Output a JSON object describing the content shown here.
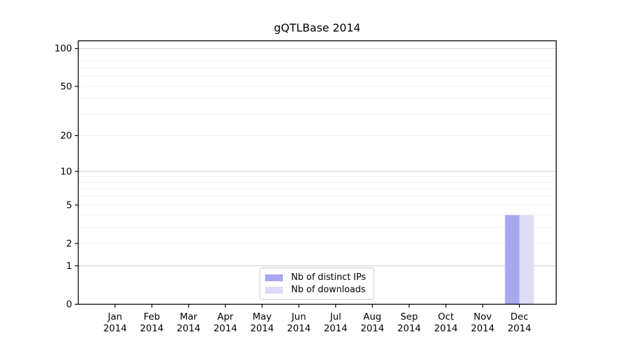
{
  "chart_data": {
    "type": "bar",
    "title": "gQTLBase 2014",
    "xlabel": "",
    "ylabel": "",
    "yscale": "log1p",
    "ylim": [
      0,
      115
    ],
    "yticks": [
      0,
      1,
      2,
      5,
      10,
      20,
      50,
      100
    ],
    "categories": [
      "Jan 2014",
      "Feb 2014",
      "Mar 2014",
      "Apr 2014",
      "May 2014",
      "Jun 2014",
      "Jul 2014",
      "Aug 2014",
      "Sep 2014",
      "Oct 2014",
      "Nov 2014",
      "Dec 2014"
    ],
    "series": [
      {
        "name": "Nb of distinct IPs",
        "color": "#a8a8f1",
        "values": [
          0,
          0,
          0,
          0,
          0,
          0,
          0,
          0,
          0,
          0,
          0,
          4
        ]
      },
      {
        "name": "Nb of downloads",
        "color": "#dcdcf8",
        "values": [
          0,
          0,
          0,
          0,
          0,
          0,
          0,
          0,
          0,
          0,
          0,
          4
        ]
      }
    ],
    "grid": {
      "major_values": [
        1,
        10,
        100
      ],
      "minor_values": [
        2,
        3,
        4,
        5,
        6,
        7,
        8,
        9,
        20,
        30,
        40,
        50,
        60,
        70,
        80,
        90
      ],
      "major_color": "#d0d0d0",
      "minor_color": "#f2f2f2"
    },
    "legend_position": "lower center",
    "colors": {
      "axis": "#000000",
      "background": "#ffffff",
      "legend_border": "#c9c9c9"
    }
  }
}
